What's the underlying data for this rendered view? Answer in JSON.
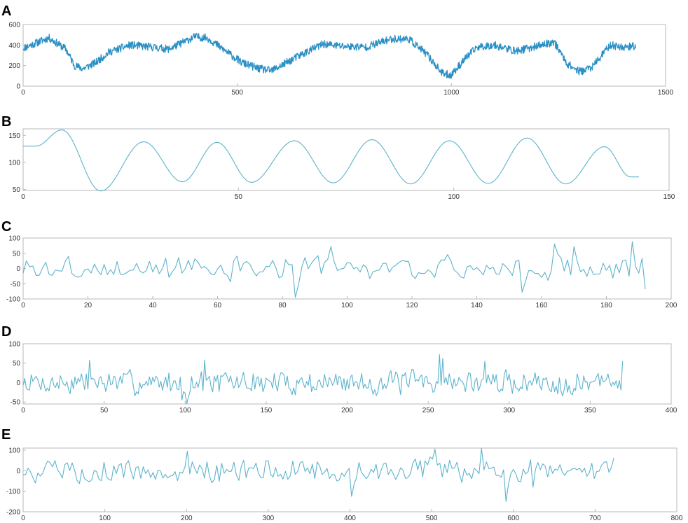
{
  "colors": {
    "panel_A_line": "#2a8fc4",
    "panel_line": "#5db3cc",
    "axis": "#b8b8b8"
  },
  "chart_data": [
    {
      "panel": "A",
      "type": "line",
      "xlim": [
        0,
        1500
      ],
      "ylim": [
        0,
        600
      ],
      "xticks": [
        0,
        500,
        1000,
        1500
      ],
      "yticks": [
        0,
        200,
        400,
        600
      ],
      "x_extent": 1430,
      "noise": 38,
      "seed": 11,
      "anchors": [
        [
          0,
          370
        ],
        [
          60,
          470
        ],
        [
          100,
          360
        ],
        [
          120,
          200
        ],
        [
          140,
          170
        ],
        [
          170,
          230
        ],
        [
          200,
          330
        ],
        [
          250,
          400
        ],
        [
          300,
          380
        ],
        [
          340,
          360
        ],
        [
          400,
          480
        ],
        [
          430,
          470
        ],
        [
          470,
          350
        ],
        [
          510,
          230
        ],
        [
          550,
          170
        ],
        [
          580,
          150
        ],
        [
          620,
          240
        ],
        [
          660,
          330
        ],
        [
          700,
          410
        ],
        [
          740,
          390
        ],
        [
          800,
          380
        ],
        [
          860,
          460
        ],
        [
          900,
          460
        ],
        [
          940,
          320
        ],
        [
          980,
          120
        ],
        [
          1000,
          110
        ],
        [
          1030,
          260
        ],
        [
          1060,
          380
        ],
        [
          1100,
          400
        ],
        [
          1150,
          340
        ],
        [
          1200,
          390
        ],
        [
          1240,
          430
        ],
        [
          1270,
          220
        ],
        [
          1300,
          140
        ],
        [
          1330,
          190
        ],
        [
          1370,
          400
        ],
        [
          1400,
          380
        ],
        [
          1430,
          390
        ]
      ]
    },
    {
      "panel": "B",
      "type": "line",
      "xlim": [
        0,
        150
      ],
      "ylim": [
        48,
        162
      ],
      "xticks": [
        0,
        50,
        100,
        150
      ],
      "yticks": [
        50,
        100,
        150
      ],
      "smooth": true,
      "anchors": [
        [
          0,
          130
        ],
        [
          3,
          130
        ],
        [
          9,
          160
        ],
        [
          18,
          47
        ],
        [
          28,
          138
        ],
        [
          37,
          64
        ],
        [
          45,
          137
        ],
        [
          53,
          63
        ],
        [
          63,
          140
        ],
        [
          72,
          62
        ],
        [
          81,
          142
        ],
        [
          90,
          60
        ],
        [
          99,
          140
        ],
        [
          108,
          61
        ],
        [
          117,
          145
        ],
        [
          126,
          60
        ],
        [
          135,
          129
        ],
        [
          141,
          73
        ],
        [
          143,
          73
        ]
      ]
    },
    {
      "panel": "C",
      "type": "line",
      "xlim": [
        0,
        200
      ],
      "ylim": [
        -100,
        100
      ],
      "xticks": [
        0,
        20,
        40,
        60,
        80,
        100,
        120,
        140,
        160,
        180,
        200
      ],
      "yticks": [
        -100,
        -50,
        0,
        50,
        100
      ],
      "x_extent": 192,
      "step": 1,
      "amp": 32,
      "seed": 3,
      "spikes": [
        [
          84,
          -95
        ],
        [
          95,
          72
        ],
        [
          154,
          -78
        ],
        [
          164,
          80
        ],
        [
          170,
          72
        ],
        [
          188,
          88
        ],
        [
          192,
          -68
        ]
      ]
    },
    {
      "panel": "D",
      "type": "line",
      "xlim": [
        0,
        400
      ],
      "ylim": [
        -55,
        100
      ],
      "xticks": [
        0,
        50,
        100,
        150,
        200,
        250,
        300,
        350,
        400
      ],
      "yticks": [
        -50,
        0,
        50,
        100
      ],
      "x_extent": 370,
      "step": 1,
      "amp": 26,
      "seed": 7,
      "spikes": [
        [
          41,
          58
        ],
        [
          98,
          -45
        ],
        [
          101,
          -55
        ],
        [
          112,
          58
        ],
        [
          257,
          72
        ],
        [
          259,
          62
        ],
        [
          285,
          55
        ],
        [
          370,
          55
        ]
      ]
    },
    {
      "panel": "E",
      "type": "line",
      "xlim": [
        0,
        800
      ],
      "ylim": [
        -200,
        110
      ],
      "xticks": [
        0,
        100,
        200,
        300,
        400,
        500,
        600,
        700,
        800
      ],
      "yticks": [
        -200,
        -100,
        0,
        100
      ],
      "x_extent": 725,
      "step": 3,
      "amp": 48,
      "seed": 5,
      "spikes": [
        [
          200,
          95
        ],
        [
          402,
          -125
        ],
        [
          505,
          105
        ],
        [
          562,
          108
        ],
        [
          590,
          -150
        ],
        [
          625,
          -80
        ]
      ]
    }
  ]
}
